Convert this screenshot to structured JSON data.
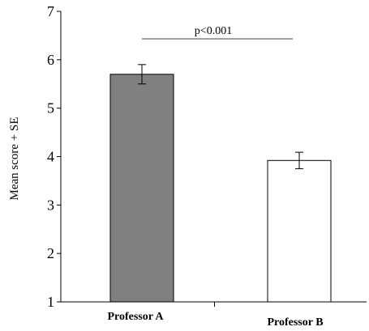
{
  "chart_data": {
    "type": "bar",
    "categories": [
      "Professor A",
      "Professor B"
    ],
    "values": [
      5.7,
      3.92
    ],
    "errors": [
      0.2,
      0.17
    ],
    "bar_colors": [
      "#808080",
      "#ffffff"
    ],
    "ylabel": "Mean score + SE",
    "ylim": [
      1,
      7
    ],
    "yticks": [
      "1",
      "2",
      "3",
      "4",
      "5",
      "6",
      "7"
    ],
    "grid": false,
    "annotation": {
      "text": "p<0.001",
      "from": "Professor A",
      "to": "Professor B"
    }
  }
}
